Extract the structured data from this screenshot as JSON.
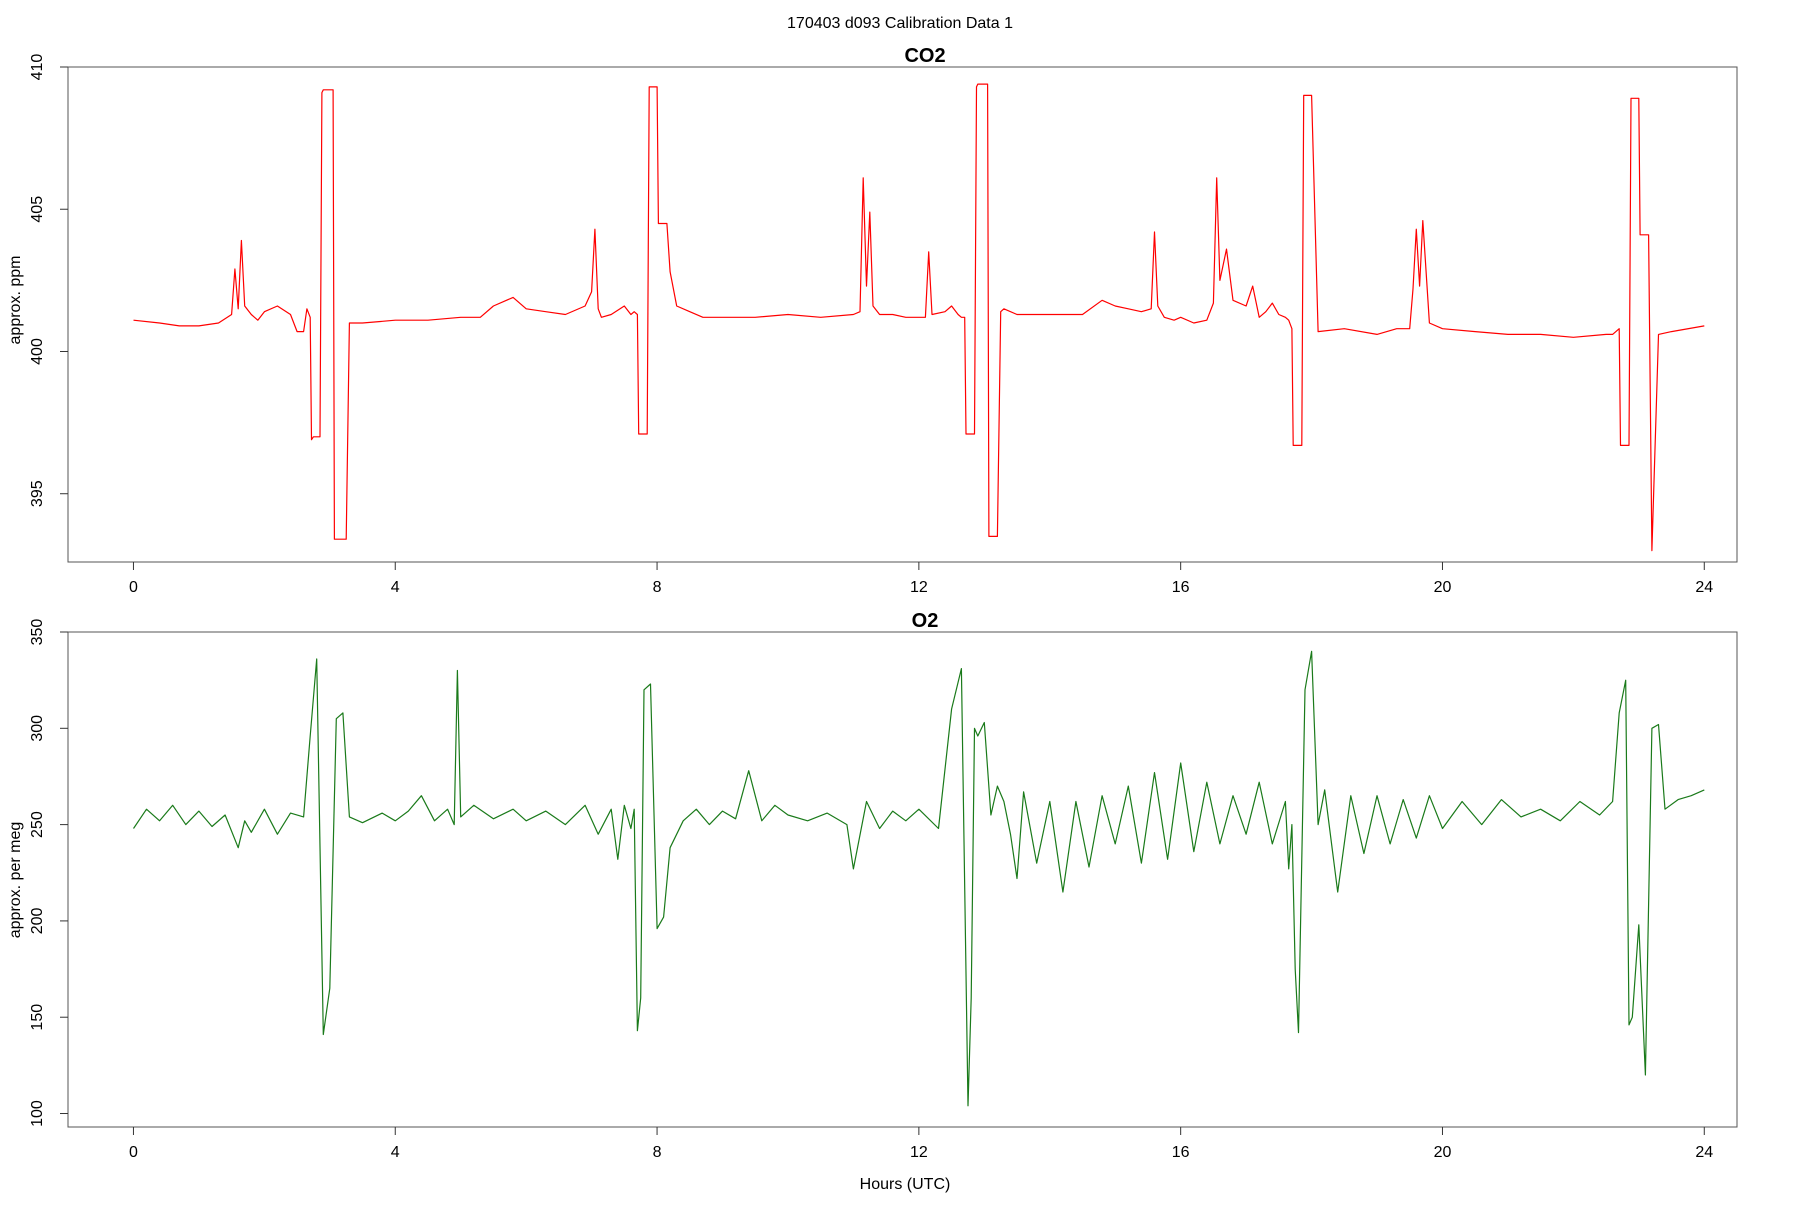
{
  "figure_title": "170403   d093   Calibration Data 1",
  "chart_data": [
    {
      "type": "line",
      "title": "CO2",
      "xlabel": "",
      "ylabel": "approx. ppm",
      "xlim": [
        -1.0,
        24.5
      ],
      "ylim": [
        392.6,
        410.0
      ],
      "xticks": [
        0,
        4,
        8,
        12,
        16,
        20,
        24
      ],
      "yticks": [
        395,
        400,
        405,
        410
      ],
      "line_color": "#ff0000",
      "series": [
        {
          "x": [
            0.0,
            0.4,
            0.7,
            1.0,
            1.3,
            1.5,
            1.55,
            1.6,
            1.65,
            1.7,
            1.8,
            1.9,
            2.0,
            2.2,
            2.4,
            2.5,
            2.6,
            2.65,
            2.7,
            2.72,
            2.75,
            2.85,
            2.88,
            2.9,
            3.05,
            3.07,
            3.1,
            3.25,
            3.3,
            3.5,
            4.0,
            4.5,
            5.0,
            5.3,
            5.5,
            5.8,
            6.0,
            6.3,
            6.6,
            6.9,
            7.0,
            7.05,
            7.1,
            7.15,
            7.3,
            7.5,
            7.6,
            7.65,
            7.7,
            7.72,
            7.75,
            7.85,
            7.88,
            7.9,
            8.0,
            8.02,
            8.05,
            8.15,
            8.2,
            8.3,
            8.5,
            8.7,
            9.0,
            9.5,
            10.0,
            10.5,
            11.0,
            11.1,
            11.15,
            11.2,
            11.25,
            11.3,
            11.4,
            11.6,
            11.8,
            12.0,
            12.1,
            12.15,
            12.2,
            12.4,
            12.5,
            12.6,
            12.65,
            12.7,
            12.72,
            12.75,
            12.85,
            12.88,
            12.9,
            13.05,
            13.07,
            13.1,
            13.2,
            13.25,
            13.3,
            13.5,
            14.0,
            14.5,
            14.8,
            15.0,
            15.2,
            15.4,
            15.55,
            15.6,
            15.65,
            15.75,
            15.9,
            16.0,
            16.2,
            16.4,
            16.5,
            16.55,
            16.6,
            16.7,
            16.8,
            17.0,
            17.1,
            17.2,
            17.3,
            17.4,
            17.5,
            17.6,
            17.65,
            17.7,
            17.72,
            17.75,
            17.85,
            17.88,
            17.9,
            18.0,
            18.1,
            18.5,
            19.0,
            19.3,
            19.5,
            19.55,
            19.6,
            19.65,
            19.7,
            19.8,
            20.0,
            20.5,
            21.0,
            21.5,
            22.0,
            22.5,
            22.6,
            22.65,
            22.7,
            22.72,
            22.75,
            22.85,
            22.88,
            22.9,
            23.0,
            23.02,
            23.05,
            23.15,
            23.2,
            23.3,
            23.5,
            24.0
          ],
          "y": [
            401.1,
            401.0,
            400.9,
            400.9,
            401.0,
            401.3,
            402.9,
            401.5,
            403.9,
            401.6,
            401.3,
            401.1,
            401.4,
            401.6,
            401.3,
            400.7,
            400.7,
            401.5,
            401.2,
            396.9,
            397.0,
            397.0,
            409.1,
            409.2,
            409.2,
            393.4,
            393.4,
            393.4,
            401.0,
            401.0,
            401.1,
            401.1,
            401.2,
            401.2,
            401.6,
            401.9,
            401.5,
            401.4,
            401.3,
            401.6,
            402.1,
            404.3,
            401.5,
            401.2,
            401.3,
            401.6,
            401.3,
            401.4,
            401.3,
            397.1,
            397.1,
            397.1,
            409.3,
            409.3,
            409.3,
            404.5,
            404.5,
            404.5,
            402.8,
            401.6,
            401.4,
            401.2,
            401.2,
            401.2,
            401.3,
            401.2,
            401.3,
            401.4,
            406.1,
            402.3,
            404.9,
            401.6,
            401.3,
            401.3,
            401.2,
            401.2,
            401.2,
            403.5,
            401.3,
            401.4,
            401.6,
            401.3,
            401.2,
            401.2,
            397.1,
            397.1,
            397.1,
            409.3,
            409.4,
            409.4,
            393.5,
            393.5,
            393.5,
            401.4,
            401.5,
            401.3,
            401.3,
            401.3,
            401.8,
            401.6,
            401.5,
            401.4,
            401.5,
            404.2,
            401.6,
            401.2,
            401.1,
            401.2,
            401.0,
            401.1,
            401.7,
            406.1,
            402.5,
            403.6,
            401.8,
            401.6,
            402.3,
            401.2,
            401.4,
            401.7,
            401.3,
            401.2,
            401.1,
            400.8,
            396.7,
            396.7,
            396.7,
            409.0,
            409.0,
            409.0,
            400.7,
            400.8,
            400.6,
            400.8,
            400.8,
            402.2,
            404.3,
            402.3,
            404.6,
            401.0,
            400.8,
            400.7,
            400.6,
            400.6,
            400.5,
            400.6,
            400.6,
            400.7,
            400.8,
            396.7,
            396.7,
            396.7,
            408.9,
            408.9,
            408.9,
            404.1,
            404.1,
            404.1,
            393.0,
            400.6,
            400.7,
            400.9
          ]
        }
      ]
    },
    {
      "type": "line",
      "title": "O2",
      "xlabel": "Hours (UTC)",
      "ylabel": "approx. per meg",
      "xlim": [
        -1.0,
        24.5
      ],
      "ylim": [
        93,
        350
      ],
      "xticks": [
        0,
        4,
        8,
        12,
        16,
        20,
        24
      ],
      "yticks": [
        100,
        150,
        200,
        250,
        300,
        350
      ],
      "line_color": "#1a7a1a",
      "series": [
        {
          "x": [
            0.0,
            0.2,
            0.4,
            0.6,
            0.8,
            1.0,
            1.2,
            1.4,
            1.6,
            1.7,
            1.8,
            2.0,
            2.2,
            2.4,
            2.6,
            2.7,
            2.8,
            2.9,
            3.0,
            3.1,
            3.2,
            3.3,
            3.5,
            3.8,
            4.0,
            4.2,
            4.4,
            4.6,
            4.8,
            4.9,
            4.95,
            5.0,
            5.2,
            5.5,
            5.8,
            6.0,
            6.3,
            6.6,
            6.9,
            7.1,
            7.3,
            7.4,
            7.5,
            7.6,
            7.65,
            7.7,
            7.75,
            7.8,
            7.9,
            8.0,
            8.1,
            8.2,
            8.4,
            8.6,
            8.8,
            9.0,
            9.2,
            9.4,
            9.6,
            9.8,
            10.0,
            10.3,
            10.6,
            10.9,
            11.0,
            11.2,
            11.4,
            11.6,
            11.8,
            12.0,
            12.3,
            12.5,
            12.65,
            12.75,
            12.8,
            12.85,
            12.9,
            13.0,
            13.1,
            13.2,
            13.3,
            13.4,
            13.5,
            13.6,
            13.8,
            14.0,
            14.2,
            14.4,
            14.6,
            14.8,
            15.0,
            15.2,
            15.4,
            15.6,
            15.8,
            16.0,
            16.2,
            16.4,
            16.6,
            16.8,
            17.0,
            17.2,
            17.4,
            17.6,
            17.65,
            17.7,
            17.75,
            17.8,
            17.9,
            18.0,
            18.1,
            18.2,
            18.4,
            18.6,
            18.8,
            19.0,
            19.2,
            19.4,
            19.6,
            19.8,
            20.0,
            20.3,
            20.6,
            20.9,
            21.2,
            21.5,
            21.8,
            22.1,
            22.4,
            22.6,
            22.7,
            22.8,
            22.85,
            22.9,
            23.0,
            23.1,
            23.2,
            23.3,
            23.4,
            23.6,
            23.8,
            24.0
          ],
          "y": [
            248,
            258,
            252,
            260,
            250,
            257,
            249,
            255,
            238,
            252,
            246,
            258,
            245,
            256,
            254,
            296,
            336,
            141,
            165,
            305,
            308,
            254,
            251,
            256,
            252,
            257,
            265,
            252,
            258,
            250,
            330,
            254,
            260,
            253,
            258,
            252,
            257,
            250,
            260,
            245,
            258,
            232,
            260,
            248,
            258,
            143,
            160,
            320,
            323,
            196,
            202,
            238,
            252,
            258,
            250,
            257,
            253,
            278,
            252,
            260,
            255,
            252,
            256,
            250,
            227,
            262,
            248,
            257,
            252,
            258,
            248,
            310,
            331,
            104,
            160,
            300,
            296,
            303,
            255,
            270,
            262,
            245,
            222,
            267,
            230,
            262,
            215,
            262,
            228,
            265,
            240,
            270,
            230,
            277,
            232,
            282,
            236,
            272,
            240,
            265,
            245,
            272,
            240,
            262,
            227,
            250,
            175,
            142,
            320,
            340,
            250,
            268,
            215,
            265,
            235,
            265,
            240,
            263,
            243,
            265,
            248,
            262,
            250,
            263,
            254,
            258,
            252,
            262,
            255,
            262,
            308,
            325,
            146,
            150,
            198,
            120,
            300,
            302,
            258,
            263,
            265,
            268
          ]
        }
      ]
    }
  ]
}
